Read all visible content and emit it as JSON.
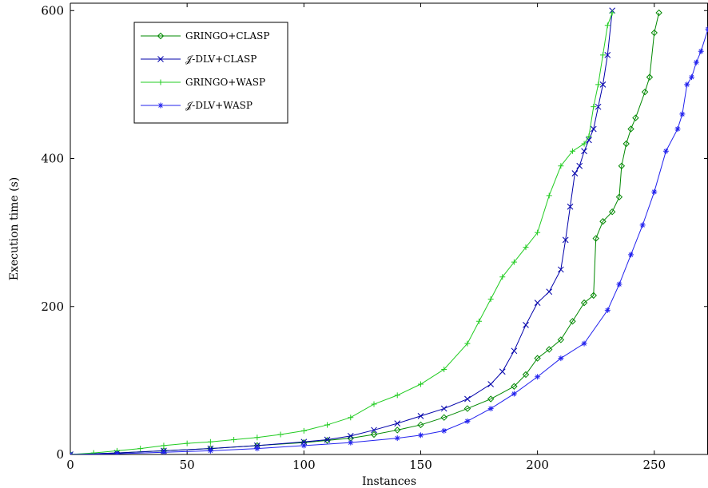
{
  "chart_data": {
    "type": "line",
    "xlabel": "Instances",
    "ylabel": "Execution time (s)",
    "xlim": [
      0,
      273
    ],
    "ylim": [
      0,
      610
    ],
    "xticks": [
      0,
      50,
      100,
      150,
      200,
      250
    ],
    "yticks": [
      0,
      200,
      400,
      600
    ],
    "grid": false,
    "legend_position": "top-left",
    "series": [
      {
        "name": "GRINGO+CLASP",
        "color": "#008800",
        "marker": "diamond",
        "x": [
          0,
          20,
          40,
          60,
          80,
          100,
          110,
          120,
          130,
          140,
          150,
          160,
          170,
          180,
          190,
          195,
          200,
          205,
          210,
          215,
          220,
          224,
          225,
          228,
          232,
          235,
          236,
          238,
          240,
          242,
          246,
          248,
          250,
          252
        ],
        "y": [
          0,
          2,
          5,
          8,
          12,
          16,
          19,
          22,
          27,
          33,
          40,
          50,
          62,
          75,
          92,
          108,
          130,
          142,
          155,
          180,
          205,
          215,
          292,
          315,
          328,
          348,
          390,
          420,
          440,
          455,
          490,
          510,
          570,
          597
        ]
      },
      {
        "name": "𝒥-DLV+CLASP",
        "color": "#0000aa",
        "marker": "x",
        "x": [
          0,
          20,
          40,
          60,
          80,
          100,
          110,
          120,
          130,
          140,
          150,
          160,
          170,
          180,
          185,
          190,
          195,
          200,
          205,
          210,
          212,
          214,
          216,
          218,
          220,
          222,
          224,
          226,
          228,
          230,
          232
        ],
        "y": [
          0,
          2,
          5,
          8,
          12,
          17,
          20,
          25,
          33,
          42,
          52,
          62,
          75,
          95,
          112,
          140,
          175,
          205,
          220,
          250,
          290,
          335,
          380,
          390,
          410,
          425,
          440,
          470,
          500,
          540,
          600
        ]
      },
      {
        "name": "GRINGO+WASP",
        "color": "#22cc22",
        "marker": "plus",
        "x": [
          0,
          10,
          20,
          30,
          40,
          50,
          60,
          70,
          80,
          90,
          100,
          110,
          120,
          130,
          140,
          150,
          160,
          170,
          175,
          180,
          185,
          190,
          195,
          200,
          205,
          210,
          215,
          220,
          222,
          224,
          226,
          228,
          230,
          232
        ],
        "y": [
          0,
          2,
          5,
          8,
          12,
          15,
          17,
          20,
          23,
          27,
          32,
          40,
          50,
          68,
          80,
          95,
          115,
          150,
          180,
          210,
          240,
          260,
          280,
          300,
          350,
          390,
          410,
          420,
          430,
          470,
          500,
          540,
          580,
          597
        ]
      },
      {
        "name": "𝒥-DLV+WASP",
        "color": "#2222ee",
        "marker": "star",
        "x": [
          0,
          20,
          40,
          60,
          80,
          100,
          120,
          140,
          150,
          160,
          170,
          180,
          190,
          200,
          210,
          220,
          230,
          235,
          240,
          245,
          250,
          255,
          260,
          262,
          264,
          266,
          268,
          270,
          273
        ],
        "y": [
          0,
          1,
          3,
          5,
          8,
          12,
          16,
          22,
          26,
          32,
          45,
          62,
          82,
          105,
          130,
          150,
          195,
          230,
          270,
          310,
          355,
          410,
          440,
          460,
          500,
          510,
          530,
          545,
          575
        ]
      }
    ]
  }
}
